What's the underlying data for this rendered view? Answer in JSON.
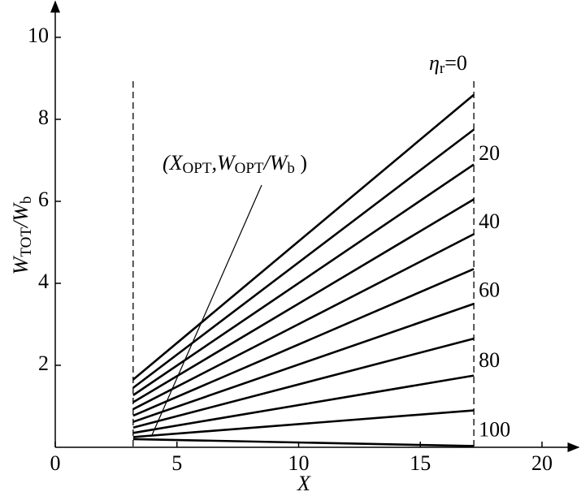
{
  "chart_data": {
    "type": "line",
    "xlabel": "X",
    "ylabel": [
      "W",
      "TOT",
      "/W",
      "b"
    ],
    "annotation": [
      "(X",
      "OPT",
      ",W",
      "OPT",
      "/W",
      "b",
      " )"
    ],
    "eta_label": [
      "η",
      "r",
      "=0"
    ],
    "x": [
      3.2,
      17.2
    ],
    "bounds_x": [
      3.2,
      17.2
    ],
    "xlim": [
      0,
      21.5
    ],
    "ylim": [
      0,
      10.9
    ],
    "xticks": [
      0,
      5,
      10,
      15,
      20
    ],
    "yticks": [
      2,
      4,
      6,
      8,
      10
    ],
    "color": "#000000",
    "series": [
      {
        "values": [
          1.65,
          8.6
        ]
      },
      {
        "values": [
          1.45,
          7.75
        ]
      },
      {
        "name": "20",
        "values": [
          1.27,
          6.9
        ]
      },
      {
        "values": [
          1.1,
          6.05
        ]
      },
      {
        "name": "40",
        "values": [
          0.93,
          5.2
        ]
      },
      {
        "values": [
          0.77,
          4.35
        ]
      },
      {
        "name": "60",
        "values": [
          0.62,
          3.5
        ]
      },
      {
        "values": [
          0.48,
          2.65
        ]
      },
      {
        "name": "80",
        "values": [
          0.35,
          1.75
        ]
      },
      {
        "values": [
          0.25,
          0.9
        ]
      },
      {
        "name": "100",
        "values": [
          0.2,
          0.03
        ]
      }
    ]
  }
}
